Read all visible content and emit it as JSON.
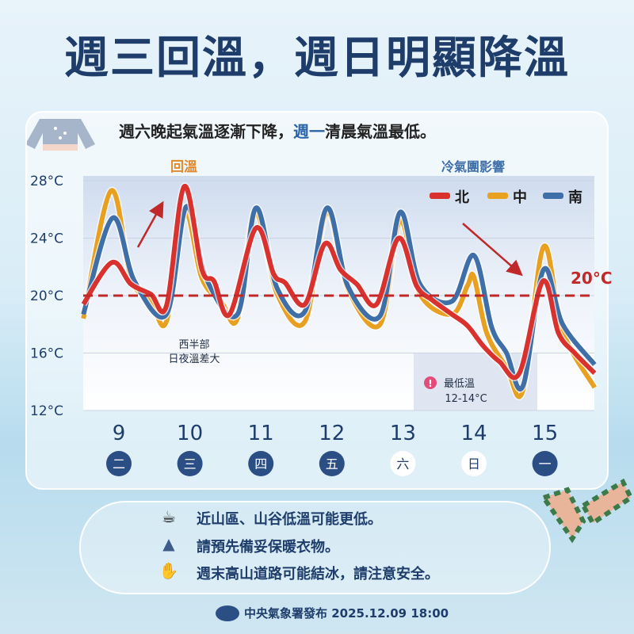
{
  "title": "週三回溫，週日明顯降溫",
  "subtitle": {
    "before": "週六晚起氣溫逐漸下降，",
    "highlight": "週一",
    "after": "清晨氣溫最低。"
  },
  "colors": {
    "north": "#d9322e",
    "central": "#e8a020",
    "south": "#3f6fa8",
    "navy": "#1f3d6b",
    "threshold": "#c0282a"
  },
  "chart_data": {
    "type": "line",
    "title": "",
    "ylim": [
      12,
      28
    ],
    "xlim": [
      8.5,
      15.7
    ],
    "yticks": [
      28,
      24,
      20,
      16,
      12
    ],
    "ytick_labels": [
      "28°C",
      "24°C",
      "20°C",
      "16°C",
      "12°C"
    ],
    "grid": true,
    "legend": "top-right",
    "x_days": [
      9,
      10,
      11,
      12,
      13,
      14,
      15
    ],
    "x_weekdays": [
      "二",
      "三",
      "四",
      "五",
      "六",
      "日",
      "一"
    ],
    "threshold": {
      "value": 20,
      "label": "20°C"
    },
    "annotations": {
      "warming": "回溫",
      "cold_air": "冷氣團影響",
      "west": [
        "西半部",
        "日夜溫差大"
      ],
      "lowest_title": "最低溫",
      "lowest_range": "12-14°C"
    },
    "series": [
      {
        "name": "北",
        "key": "north",
        "points": [
          [
            8.5,
            19.4
          ],
          [
            8.9,
            22.3
          ],
          [
            9.17,
            20.8
          ],
          [
            9.45,
            20.1
          ],
          [
            9.67,
            19.3
          ],
          [
            9.92,
            27.6
          ],
          [
            10.17,
            21.8
          ],
          [
            10.34,
            21
          ],
          [
            10.56,
            18.7
          ],
          [
            10.93,
            24.7
          ],
          [
            11.18,
            21.5
          ],
          [
            11.34,
            20.9
          ],
          [
            11.62,
            19.4
          ],
          [
            11.9,
            23.6
          ],
          [
            12.12,
            21.8
          ],
          [
            12.35,
            20.8
          ],
          [
            12.63,
            19.4
          ],
          [
            12.94,
            24
          ],
          [
            13.19,
            20.7
          ],
          [
            13.41,
            19.7
          ],
          [
            13.69,
            18.7
          ],
          [
            13.91,
            17.9
          ],
          [
            14.13,
            16.5
          ],
          [
            14.36,
            15.4
          ],
          [
            14.64,
            14.6
          ],
          [
            14.97,
            21
          ],
          [
            15.19,
            17.4
          ],
          [
            15.42,
            16
          ],
          [
            15.7,
            14.6
          ]
        ]
      },
      {
        "name": "中",
        "key": "central",
        "points": [
          [
            8.5,
            18.4
          ],
          [
            8.89,
            27.3
          ],
          [
            9.17,
            21.2
          ],
          [
            9.45,
            19.6
          ],
          [
            9.67,
            18.2
          ],
          [
            9.92,
            25.9
          ],
          [
            10.17,
            21.2
          ],
          [
            10.45,
            19.5
          ],
          [
            10.67,
            18.4
          ],
          [
            10.92,
            25.8
          ],
          [
            11.23,
            20.1
          ],
          [
            11.62,
            18.2
          ],
          [
            11.93,
            25.8
          ],
          [
            12.23,
            20.4
          ],
          [
            12.68,
            18
          ],
          [
            12.96,
            25.2
          ],
          [
            13.24,
            20.1
          ],
          [
            13.69,
            18.7
          ],
          [
            13.91,
            20.7
          ],
          [
            14.0,
            21.3
          ],
          [
            14.18,
            17.4
          ],
          [
            14.46,
            15
          ],
          [
            14.69,
            13.4
          ],
          [
            14.98,
            23.4
          ],
          [
            15.25,
            17.5
          ],
          [
            15.7,
            13.6
          ]
        ]
      },
      {
        "name": "南",
        "key": "south",
        "points": [
          [
            8.5,
            18.7
          ],
          [
            8.91,
            25.4
          ],
          [
            9.22,
            21
          ],
          [
            9.67,
            18.7
          ],
          [
            9.95,
            26.2
          ],
          [
            10.23,
            21.2
          ],
          [
            10.67,
            18.7
          ],
          [
            10.93,
            26.1
          ],
          [
            11.23,
            20.5
          ],
          [
            11.62,
            18.9
          ],
          [
            11.93,
            26.1
          ],
          [
            12.23,
            20.6
          ],
          [
            12.68,
            18.6
          ],
          [
            12.96,
            25.8
          ],
          [
            13.24,
            20.8
          ],
          [
            13.69,
            19.6
          ],
          [
            14.0,
            22.8
          ],
          [
            14.25,
            17.8
          ],
          [
            14.46,
            16
          ],
          [
            14.69,
            13.7
          ],
          [
            14.98,
            21.8
          ],
          [
            15.25,
            18
          ],
          [
            15.7,
            15.2
          ]
        ]
      }
    ]
  },
  "tips": [
    "近山區、山谷低溫可能更低。",
    "請預先備妥保暖衣物。",
    "週末高山道路可能結冰，請注意安全。"
  ],
  "footer": {
    "text": "中央氣象署發布 2025.12.09 18:00"
  }
}
